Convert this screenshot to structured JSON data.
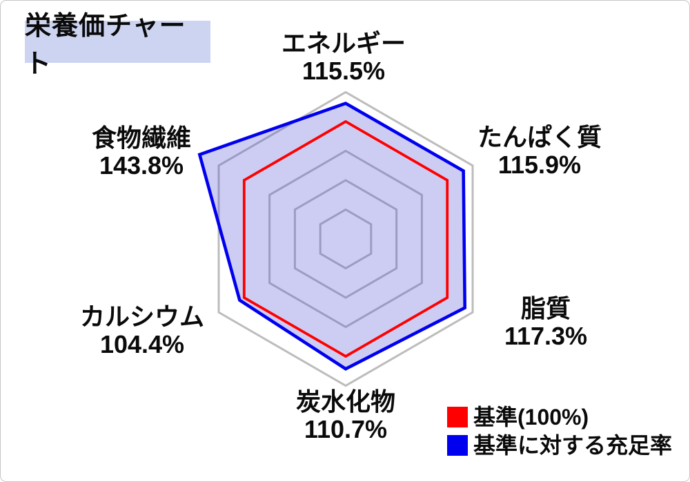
{
  "title": "栄養価チャート",
  "chart_data": {
    "type": "radar",
    "title": "栄養価チャート",
    "axes": [
      {
        "label": "エネルギー",
        "value": 115.5,
        "display": "115.5%"
      },
      {
        "label": "たんぱく質",
        "value": 115.9,
        "display": "115.9%"
      },
      {
        "label": "脂質",
        "value": 117.3,
        "display": "117.3%"
      },
      {
        "label": "炭水化物",
        "value": 110.7,
        "display": "110.7%"
      },
      {
        "label": "カルシウム",
        "value": 104.4,
        "display": "104.4%"
      },
      {
        "label": "食物繊維",
        "value": 143.8,
        "display": "143.8%"
      }
    ],
    "series": [
      {
        "name": "基準(100%)",
        "color": "#ff0000",
        "values": [
          100,
          100,
          100,
          100,
          100,
          100
        ]
      },
      {
        "name": "基準に対する充足率",
        "color": "#0000ee",
        "values": [
          115.5,
          115.9,
          117.3,
          110.7,
          104.4,
          143.8
        ]
      }
    ],
    "grid_levels_percent": [
      25,
      50,
      75,
      100,
      125
    ],
    "unit": "%",
    "grid_on": true,
    "grid_color": "#bcbcbc",
    "fill_color": "rgba(70,70,215,0.27)",
    "legend_position": "bottom-right"
  },
  "legend": {
    "items": [
      {
        "label": "基準(100%)",
        "color": "#ff0000"
      },
      {
        "label": "基準に対する充足率",
        "color": "#0000ee"
      }
    ]
  }
}
